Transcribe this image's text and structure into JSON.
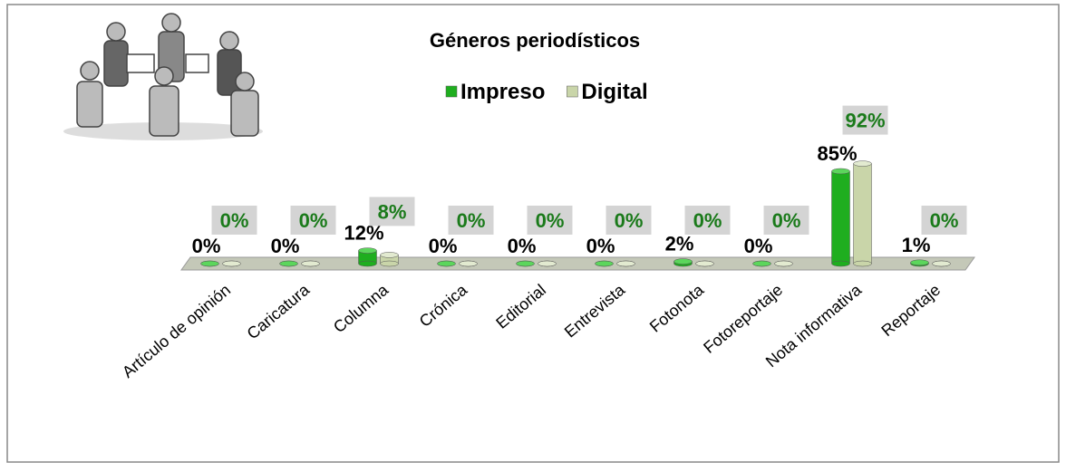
{
  "chart_data": {
    "type": "bar",
    "title": "Géneros periodísticos",
    "categories": [
      "Artículo de opinión",
      "Caricatura",
      "Columna",
      "Crónica",
      "Editorial",
      "Entrevista",
      "Fotonota",
      "Fotoreportaje",
      "Nota informativa",
      "Reportaje"
    ],
    "series": [
      {
        "name": "Impreso",
        "color": "#1fae1f",
        "values": [
          0,
          0,
          12,
          0,
          0,
          0,
          2,
          0,
          85,
          1
        ],
        "value_labels": [
          "0%",
          "0%",
          "12%",
          "0%",
          "0%",
          "0%",
          "2%",
          "0%",
          "85%",
          "1%"
        ]
      },
      {
        "name": "Digital",
        "color": "#c9d5a9",
        "values": [
          0,
          0,
          8,
          0,
          0,
          0,
          0,
          0,
          92,
          0
        ],
        "value_labels": [
          "0%",
          "0%",
          "8%",
          "0%",
          "0%",
          "0%",
          "0%",
          "0%",
          "92%",
          "0%"
        ]
      }
    ]
  }
}
